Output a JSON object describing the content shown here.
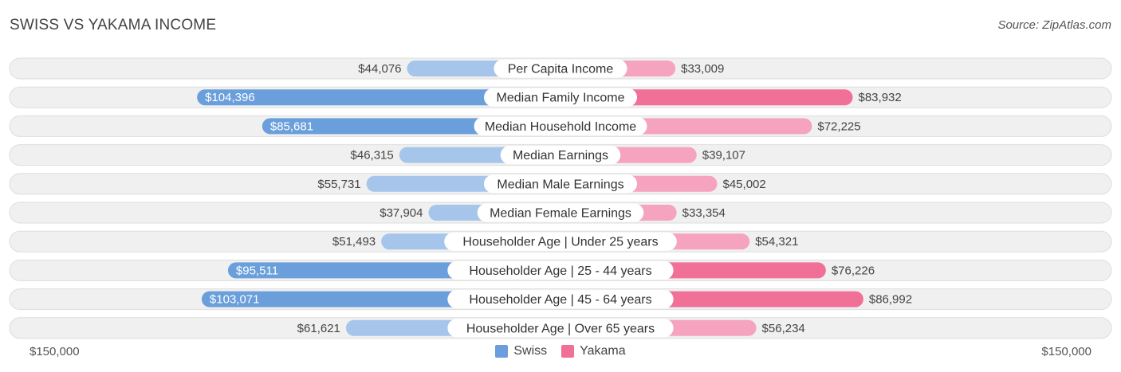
{
  "header": {
    "title": "SWISS VS YAKAMA INCOME",
    "source": "Source: ZipAtlas.com"
  },
  "axis": {
    "left_label": "$150,000",
    "right_label": "$150,000"
  },
  "legend": {
    "swiss_label": "Swiss",
    "yakama_label": "Yakama"
  },
  "colors": {
    "swiss_strong": "#6a9fdb",
    "swiss_light": "#a6c5ea",
    "yakama_strong": "#f07098",
    "yakama_light": "#f5a3be",
    "row_bg": "#f0f0f0",
    "row_border": "#dddddd"
  },
  "chart_data": {
    "type": "bar",
    "orientation": "diverging-horizontal",
    "title": "SWISS VS YAKAMA INCOME",
    "xlim": [
      -150000,
      150000
    ],
    "categories": [
      "Per Capita Income",
      "Median Family Income",
      "Median Household Income",
      "Median Earnings",
      "Median Male Earnings",
      "Median Female Earnings",
      "Householder Age | Under 25 years",
      "Householder Age | 25 - 44 years",
      "Householder Age | 45 - 64 years",
      "Householder Age | Over 65 years"
    ],
    "series": [
      {
        "name": "Swiss",
        "side": "left",
        "values": [
          44076,
          104396,
          85681,
          46315,
          55731,
          37904,
          51493,
          95511,
          103071,
          61621
        ],
        "labels": [
          "$44,076",
          "$104,396",
          "$85,681",
          "$46,315",
          "$55,731",
          "$37,904",
          "$51,493",
          "$95,511",
          "$103,071",
          "$61,621"
        ]
      },
      {
        "name": "Yakama",
        "side": "right",
        "values": [
          33009,
          83932,
          72225,
          39107,
          45002,
          33354,
          54321,
          76226,
          86992,
          56234
        ],
        "labels": [
          "$33,009",
          "$83,932",
          "$72,225",
          "$39,107",
          "$45,002",
          "$33,354",
          "$54,321",
          "$76,226",
          "$86,992",
          "$56,234"
        ]
      }
    ],
    "legend_position": "bottom-center"
  }
}
